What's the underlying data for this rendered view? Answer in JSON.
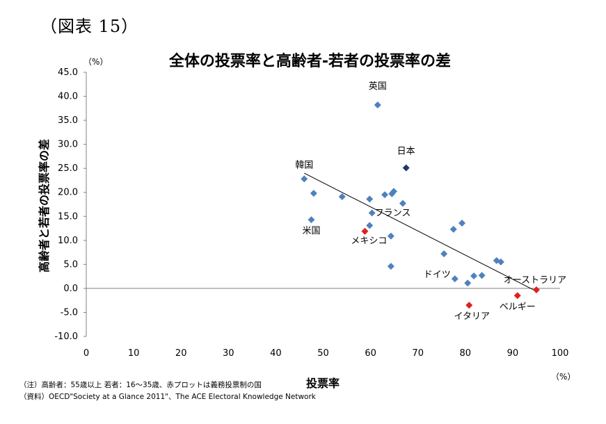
{
  "figure_label": "（図表 15）",
  "y_unit": "（%）",
  "x_unit": "（%）",
  "notes": {
    "line1": "（注）高齢者：55歳以上  若者：16～35歳、赤プロットは義務投票制の国",
    "line2": "（資料）OECD\"Society at a Glance 2011\"、The ACE Electoral Knowledge Network"
  },
  "colors": {
    "default": "#4f81bd",
    "japan": "#1f3864",
    "compulsory": "#e02020",
    "trend": "#000000",
    "axis": "#808080"
  },
  "chart_data": {
    "type": "scatter",
    "title": "全体の投票率と高齢者-若者の投票率の差",
    "xlabel": "投票率",
    "ylabel": "高齢者と若者の投票率の差",
    "xlim": [
      0,
      100
    ],
    "ylim": [
      -10,
      45
    ],
    "x_ticks": [
      "0",
      "10",
      "20",
      "30",
      "40",
      "50",
      "60",
      "70",
      "80",
      "90",
      "100"
    ],
    "y_ticks": [
      "45.0",
      "40.0",
      "35.0",
      "30.0",
      "25.0",
      "20.0",
      "15.0",
      "10.0",
      "5.0",
      "0.0",
      "-5.0",
      "-10.0"
    ],
    "grid": false,
    "legend": "none",
    "trendline": {
      "x": [
        46,
        95
      ],
      "y": [
        24,
        -0.6
      ]
    },
    "points": [
      {
        "x": 61.5,
        "y": 38.2,
        "group": "default",
        "label": "英国"
      },
      {
        "x": 67.5,
        "y": 25.1,
        "group": "japan",
        "label": "日本"
      },
      {
        "x": 46.0,
        "y": 22.8,
        "group": "default",
        "label": "韓国"
      },
      {
        "x": 48.0,
        "y": 19.8,
        "group": "default",
        "label": ""
      },
      {
        "x": 47.5,
        "y": 14.3,
        "group": "default",
        "label": "米国"
      },
      {
        "x": 54.0,
        "y": 19.1,
        "group": "default",
        "label": ""
      },
      {
        "x": 59.8,
        "y": 18.6,
        "group": "default",
        "label": ""
      },
      {
        "x": 63.0,
        "y": 19.5,
        "group": "default",
        "label": ""
      },
      {
        "x": 64.5,
        "y": 19.7,
        "group": "default",
        "label": ""
      },
      {
        "x": 64.9,
        "y": 20.2,
        "group": "default",
        "label": ""
      },
      {
        "x": 66.8,
        "y": 17.7,
        "group": "default",
        "label": ""
      },
      {
        "x": 60.3,
        "y": 15.7,
        "group": "default",
        "label": "フランス"
      },
      {
        "x": 59.8,
        "y": 13.1,
        "group": "default",
        "label": ""
      },
      {
        "x": 64.3,
        "y": 10.9,
        "group": "default",
        "label": ""
      },
      {
        "x": 64.3,
        "y": 4.6,
        "group": "default",
        "label": ""
      },
      {
        "x": 75.5,
        "y": 7.2,
        "group": "default",
        "label": ""
      },
      {
        "x": 77.5,
        "y": 12.3,
        "group": "default",
        "label": ""
      },
      {
        "x": 79.3,
        "y": 13.6,
        "group": "default",
        "label": ""
      },
      {
        "x": 77.8,
        "y": 2.0,
        "group": "default",
        "label": "ドイツ"
      },
      {
        "x": 80.5,
        "y": 1.1,
        "group": "default",
        "label": ""
      },
      {
        "x": 81.8,
        "y": 2.6,
        "group": "default",
        "label": ""
      },
      {
        "x": 83.5,
        "y": 2.7,
        "group": "default",
        "label": ""
      },
      {
        "x": 86.6,
        "y": 5.8,
        "group": "default",
        "label": ""
      },
      {
        "x": 87.5,
        "y": 5.5,
        "group": "default",
        "label": ""
      },
      {
        "x": 58.8,
        "y": 11.9,
        "group": "compulsory",
        "label": "メキシコ"
      },
      {
        "x": 80.8,
        "y": -3.5,
        "group": "compulsory",
        "label": "イタリア"
      },
      {
        "x": 91.0,
        "y": -1.5,
        "group": "compulsory",
        "label": "ベルギー"
      },
      {
        "x": 95.0,
        "y": -0.3,
        "group": "compulsory",
        "label": "オーストラリア"
      }
    ]
  }
}
